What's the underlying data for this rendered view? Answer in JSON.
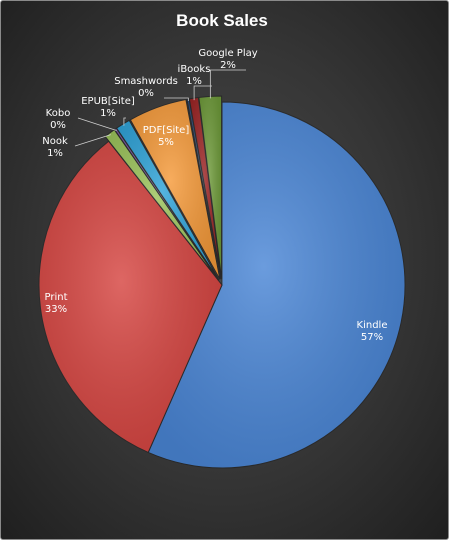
{
  "chart_data": {
    "type": "pie",
    "title": "Book Sales",
    "slices": [
      {
        "label": "Kindle",
        "value": 57,
        "pct_label": "57%",
        "color": "#4a86d6"
      },
      {
        "label": "Print",
        "value": 33,
        "pct_label": "33%",
        "color": "#d64541"
      },
      {
        "label": "Nook",
        "value": 1,
        "pct_label": "1%",
        "color": "#9bc35a"
      },
      {
        "label": "Kobo",
        "value": 0.2,
        "pct_label": "0%",
        "color": "#7a5aa8"
      },
      {
        "label": "EPUB[Site]",
        "value": 1.3,
        "pct_label": "1%",
        "color": "#2fa3d8"
      },
      {
        "label": "PDF[Site]",
        "value": 5.2,
        "pct_label": "5%",
        "color": "#f59a3a"
      },
      {
        "label": "Smashwords",
        "value": 0.2,
        "pct_label": "0%",
        "color": "#2b4c7e"
      },
      {
        "label": "iBooks",
        "value": 0.8,
        "pct_label": "1%",
        "color": "#9b2424"
      },
      {
        "label": "Google Play",
        "value": 2.0,
        "pct_label": "2%",
        "color": "#6e9a3a"
      }
    ],
    "start": "12 o'clock",
    "direction": "clockwise",
    "legend": "none"
  }
}
